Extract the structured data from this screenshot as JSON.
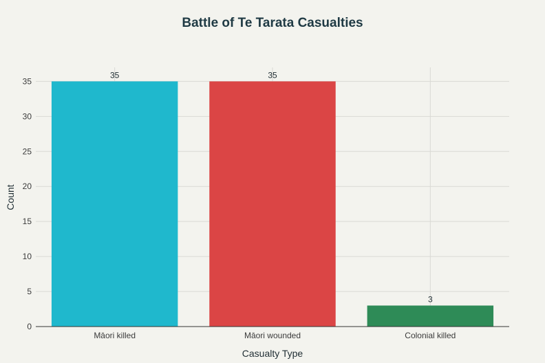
{
  "chart_data": {
    "type": "bar",
    "title": "Battle of Te Tarata Casualties",
    "xlabel": "Casualty Type",
    "ylabel": "Count",
    "categories": [
      "Māori killed",
      "Māori wounded",
      "Colonial killed"
    ],
    "values": [
      35,
      35,
      3
    ],
    "colors": [
      "#1fb8cd",
      "#db4545",
      "#2e8b57"
    ],
    "ylim": [
      0,
      37
    ],
    "yticks": [
      0,
      5,
      10,
      15,
      20,
      25,
      30,
      35
    ],
    "grid": true,
    "data_labels": true
  }
}
